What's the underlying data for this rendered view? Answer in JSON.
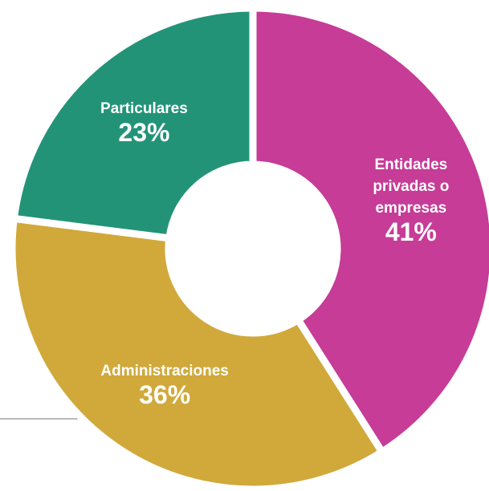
{
  "chart_data": {
    "type": "donut",
    "categories": [
      "Entidades privadas o empresas",
      "Administraciones",
      "Particulares"
    ],
    "values": [
      41,
      36,
      23
    ],
    "value_labels": [
      "41%",
      "36%",
      "23%"
    ],
    "colors": [
      "#c63c97",
      "#d0a93a",
      "#239378"
    ]
  }
}
